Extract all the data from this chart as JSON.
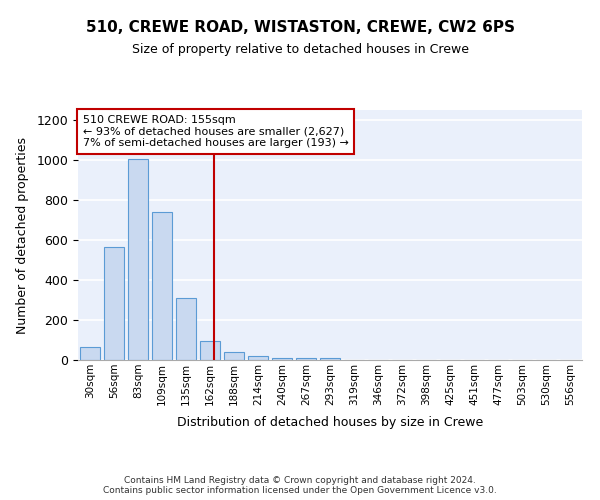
{
  "title1": "510, CREWE ROAD, WISTASTON, CREWE, CW2 6PS",
  "title2": "Size of property relative to detached houses in Crewe",
  "xlabel": "Distribution of detached houses by size in Crewe",
  "ylabel": "Number of detached properties",
  "bin_labels": [
    "30sqm",
    "56sqm",
    "83sqm",
    "109sqm",
    "135sqm",
    "162sqm",
    "188sqm",
    "214sqm",
    "240sqm",
    "267sqm",
    "293sqm",
    "319sqm",
    "346sqm",
    "372sqm",
    "398sqm",
    "425sqm",
    "451sqm",
    "477sqm",
    "503sqm",
    "530sqm",
    "556sqm"
  ],
  "bar_values": [
    65,
    565,
    1005,
    740,
    310,
    95,
    40,
    22,
    12,
    8,
    8,
    0,
    0,
    0,
    0,
    0,
    0,
    0,
    0,
    0,
    0
  ],
  "bar_color": "#c9d9f0",
  "bar_edge_color": "#5b9bd5",
  "vline_x": 5.18,
  "vline_color": "#c00000",
  "annotation_text": "510 CREWE ROAD: 155sqm\n← 93% of detached houses are smaller (2,627)\n7% of semi-detached houses are larger (193) →",
  "annotation_box_color": "white",
  "annotation_box_edge": "#c00000",
  "ylim": [
    0,
    1250
  ],
  "yticks": [
    0,
    200,
    400,
    600,
    800,
    1000,
    1200
  ],
  "background_color": "#eaf0fb",
  "grid_color": "white",
  "footer": "Contains HM Land Registry data © Crown copyright and database right 2024.\nContains public sector information licensed under the Open Government Licence v3.0."
}
